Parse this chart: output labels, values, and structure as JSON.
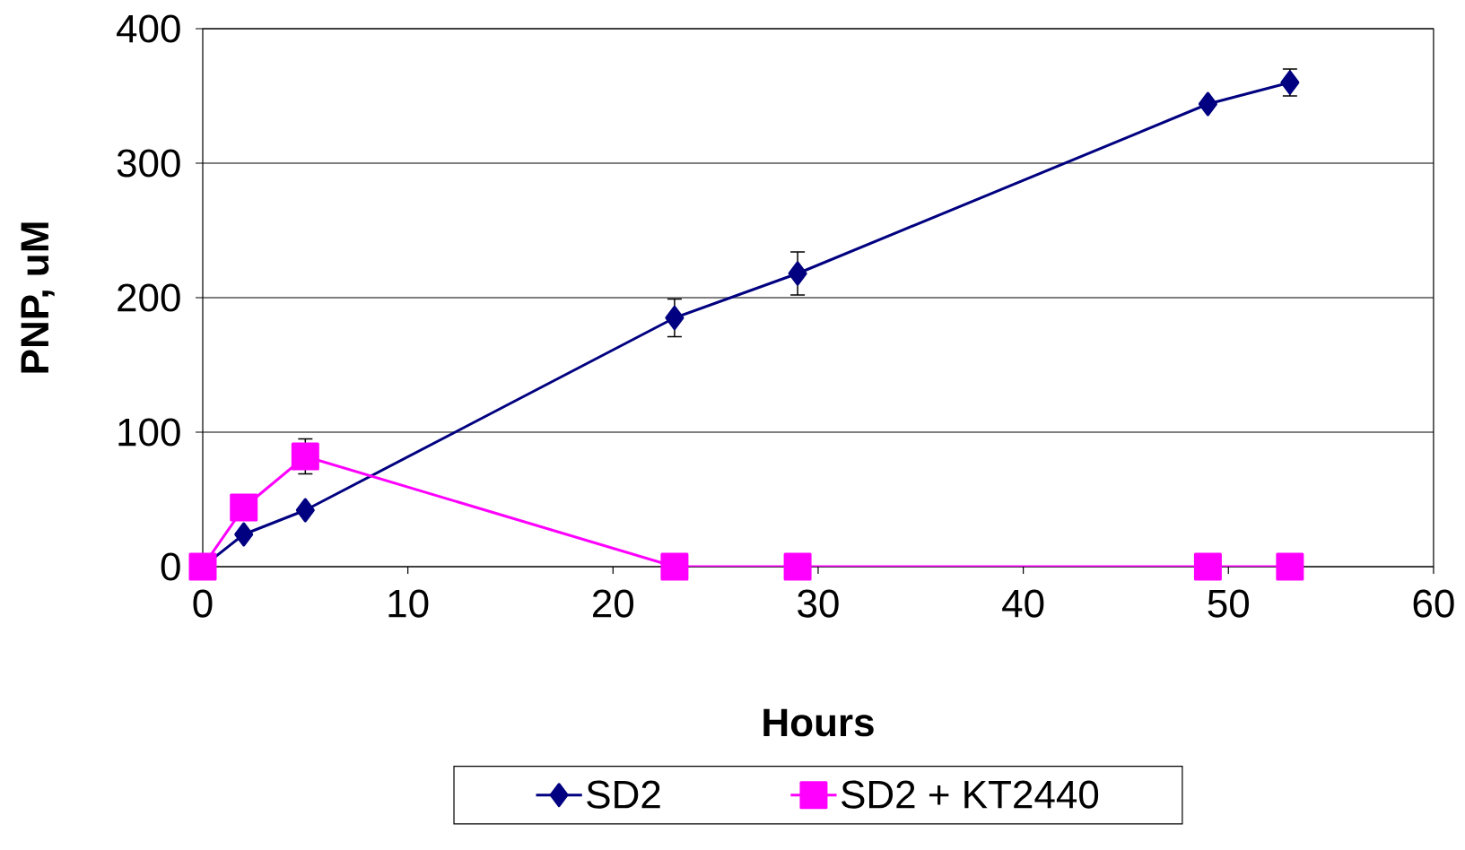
{
  "chart_data": {
    "type": "line",
    "xlabel": "Hours",
    "ylabel": "PNP, uM",
    "xlim": [
      0,
      60
    ],
    "ylim": [
      0,
      400
    ],
    "xticks": [
      0,
      10,
      20,
      30,
      40,
      50,
      60
    ],
    "yticks": [
      0,
      100,
      200,
      300,
      400
    ],
    "grid": "y",
    "legend": "bottom",
    "line_style": "solid",
    "series": [
      {
        "name": "SD2",
        "color": "#000080",
        "marker": "diamond",
        "x": [
          0,
          2,
          5,
          23,
          29,
          49,
          53
        ],
        "values": [
          0,
          24,
          42,
          185,
          218,
          344,
          360
        ],
        "errors": [
          null,
          null,
          null,
          14,
          16,
          null,
          10
        ]
      },
      {
        "name": "SD2 + KT2440",
        "color": "#ff00ff",
        "marker": "square",
        "x": [
          0,
          2,
          5,
          23,
          29,
          49,
          53
        ],
        "values": [
          0,
          44,
          82,
          0,
          0,
          0,
          0
        ],
        "errors": [
          null,
          null,
          13,
          null,
          null,
          null,
          null
        ]
      }
    ]
  }
}
